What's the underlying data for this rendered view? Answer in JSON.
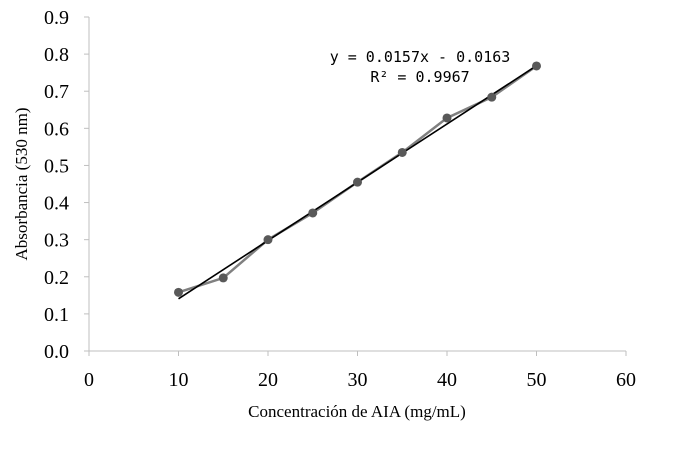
{
  "chart_data": {
    "type": "scatter",
    "title": "",
    "xlabel": "Concentración de AIA (mg/mL)",
    "ylabel": "Absorbancia (530 nm)",
    "xlim": [
      0,
      60
    ],
    "ylim": [
      0.0,
      0.9
    ],
    "x_ticks": [
      "0",
      "10",
      "20",
      "30",
      "40",
      "50",
      "60"
    ],
    "y_ticks": [
      "0.0",
      "0.1",
      "0.2",
      "0.3",
      "0.4",
      "0.5",
      "0.6",
      "0.7",
      "0.8",
      "0.9"
    ],
    "grid": false,
    "legend": "none",
    "series": [
      {
        "x": [
          10,
          15,
          20,
          25,
          30,
          35,
          40,
          45,
          50
        ],
        "y": [
          0.158,
          0.197,
          0.3,
          0.372,
          0.455,
          0.535,
          0.628,
          0.684,
          0.768
        ],
        "marker_color": "#595959",
        "line_color": "#808080"
      }
    ],
    "trendline": {
      "type": "linear",
      "slope": 0.0157,
      "intercept": -0.0163,
      "x_range": [
        10,
        50
      ],
      "color": "#000000",
      "equation_label": "y = 0.0157x - 0.0163",
      "r2_label": "R² = 0.9967"
    }
  }
}
